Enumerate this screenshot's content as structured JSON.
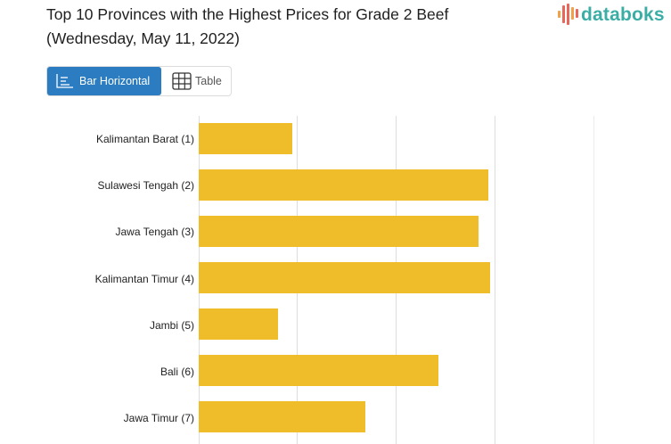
{
  "header": {
    "title_line1": "Top 10 Provinces with the Highest Prices for Grade 2 Beef",
    "title_line2": "(Wednesday, May 11, 2022)",
    "logo_text": "databoks",
    "logo_icon": "bar-pulse-icon"
  },
  "toggle": {
    "bar_label": "Bar Horizontal",
    "bar_icon": "bar-horizontal-icon",
    "table_label": "Table",
    "table_icon": "table-grid-icon",
    "active": "Bar Horizontal"
  },
  "colors": {
    "bar": "#efbd2a",
    "active_button": "#2b7cc0",
    "logo": "#3aaea5",
    "gridline": "#dddddd"
  },
  "chart_data": {
    "type": "bar",
    "orientation": "horizontal",
    "title": "Top 10 Provinces with the Highest Prices for Grade 2 Beef (Wednesday, May 11, 2022)",
    "categories": [
      "Kalimantan Barat (1)",
      "Sulawesi Tengah (2)",
      "Jawa Tengah (3)",
      "Kalimantan Timur (4)",
      "Jambi (5)",
      "Bali (6)",
      "Jawa Timur (7)"
    ],
    "values": [
      0.95,
      2.93,
      2.83,
      2.95,
      0.8,
      2.43,
      1.69
    ],
    "value_units": "gridline intervals (axis tick labels not visible)",
    "xlabel": "",
    "ylabel": "",
    "grid": true,
    "gridline_count": 4,
    "xlim": [
      0,
      4
    ],
    "legend": "none",
    "note": "Only 7 of 10 rows visible; no numeric axis labels or data labels shown"
  }
}
